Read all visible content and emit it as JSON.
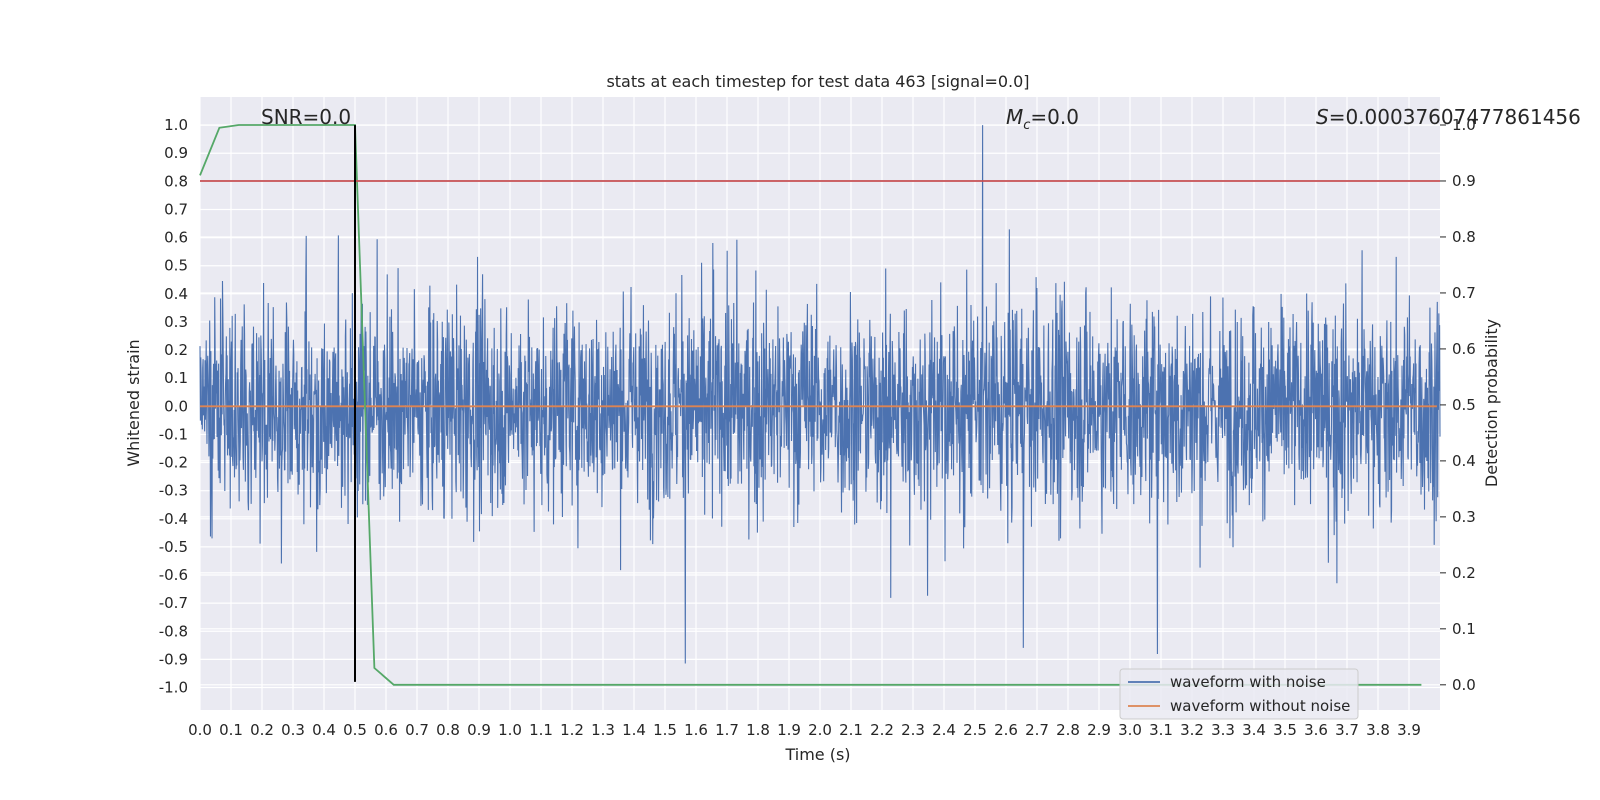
{
  "chart_data": {
    "type": "line",
    "title": "stats at each timestep for test data 463 [signal=0.0]",
    "xlabel": "Time (s)",
    "ylabel_left": "Whitened strain",
    "ylabel_right": "Detection probability",
    "xlim": [
      0.0,
      4.0
    ],
    "ylim_left": [
      -1.08,
      1.1
    ],
    "ylim_right": [
      -0.045,
      1.05
    ],
    "grid": true,
    "x_ticks": [
      "0.0",
      "0.1",
      "0.2",
      "0.3",
      "0.4",
      "0.5",
      "0.6",
      "0.7",
      "0.8",
      "0.9",
      "1.0",
      "1.1",
      "1.2",
      "1.3",
      "1.4",
      "1.5",
      "1.6",
      "1.7",
      "1.8",
      "1.9",
      "2.0",
      "2.1",
      "2.2",
      "2.3",
      "2.4",
      "2.5",
      "2.6",
      "2.7",
      "2.8",
      "2.9",
      "3.0",
      "3.1",
      "3.2",
      "3.3",
      "3.4",
      "3.5",
      "3.6",
      "3.7",
      "3.8",
      "3.9"
    ],
    "y_ticks_left": [
      "1.0",
      "0.9",
      "0.8",
      "0.7",
      "0.6",
      "0.5",
      "0.4",
      "0.3",
      "0.2",
      "0.1",
      "0.0",
      "-0.1",
      "-0.2",
      "-0.3",
      "-0.4",
      "-0.5",
      "-0.6",
      "-0.7",
      "-0.8",
      "-0.9",
      "-1.0"
    ],
    "y_ticks_right": [
      "1.0",
      "0.9",
      "0.8",
      "0.7",
      "0.6",
      "0.5",
      "0.4",
      "0.3",
      "0.2",
      "0.1",
      "0.0"
    ],
    "annotations": {
      "snr": "SNR=0.0",
      "mc_symbol": "M",
      "mc_sub": "c",
      "mc_value": "=0.0",
      "s_symbol": "S",
      "s_value": "=0.00037607477861456"
    },
    "series": [
      {
        "name": "waveform with noise",
        "axis": "left",
        "color": "#4c72b0",
        "description": "whitened noisy strain, dense noise between roughly -0.95 and 1.0",
        "amplitude_envelope": [
          -0.95,
          1.0
        ]
      },
      {
        "name": "waveform without noise",
        "axis": "left",
        "color": "#dd8452",
        "x": [
          0.0,
          3.99
        ],
        "y": [
          0.0,
          0.0
        ]
      },
      {
        "name": "detection probability",
        "axis": "right",
        "color": "#55a868",
        "x": [
          0.0,
          0.0625,
          0.125,
          0.1875,
          0.25,
          0.3125,
          0.375,
          0.4375,
          0.5,
          0.5625,
          0.625,
          0.6875,
          0.75,
          1.0,
          1.5,
          2.0,
          2.5,
          3.0,
          3.5,
          3.94
        ],
        "y": [
          0.91,
          0.995,
          1.0,
          1.0,
          1.0,
          1.0,
          1.0,
          1.0,
          1.0,
          0.03,
          0.0,
          0.0,
          0.0,
          0.0,
          0.0,
          0.0,
          0.0,
          0.0,
          0.0,
          0.0
        ]
      },
      {
        "name": "detection threshold",
        "axis": "right",
        "color": "#c44e52",
        "x": [
          0.0,
          4.0
        ],
        "y": [
          0.9,
          0.9
        ]
      },
      {
        "name": "event marker",
        "axis": "left",
        "color": "#000000",
        "x": [
          0.5,
          0.5
        ],
        "y": [
          -0.98,
          1.0
        ]
      }
    ],
    "legend": {
      "position": "lower-right",
      "entries": [
        {
          "label": "waveform with noise",
          "color": "#4c72b0"
        },
        {
          "label": "waveform without noise",
          "color": "#dd8452"
        }
      ]
    },
    "colors": {
      "background": "#eaeaf2",
      "grid": "#ffffff",
      "text": "#262626"
    }
  }
}
